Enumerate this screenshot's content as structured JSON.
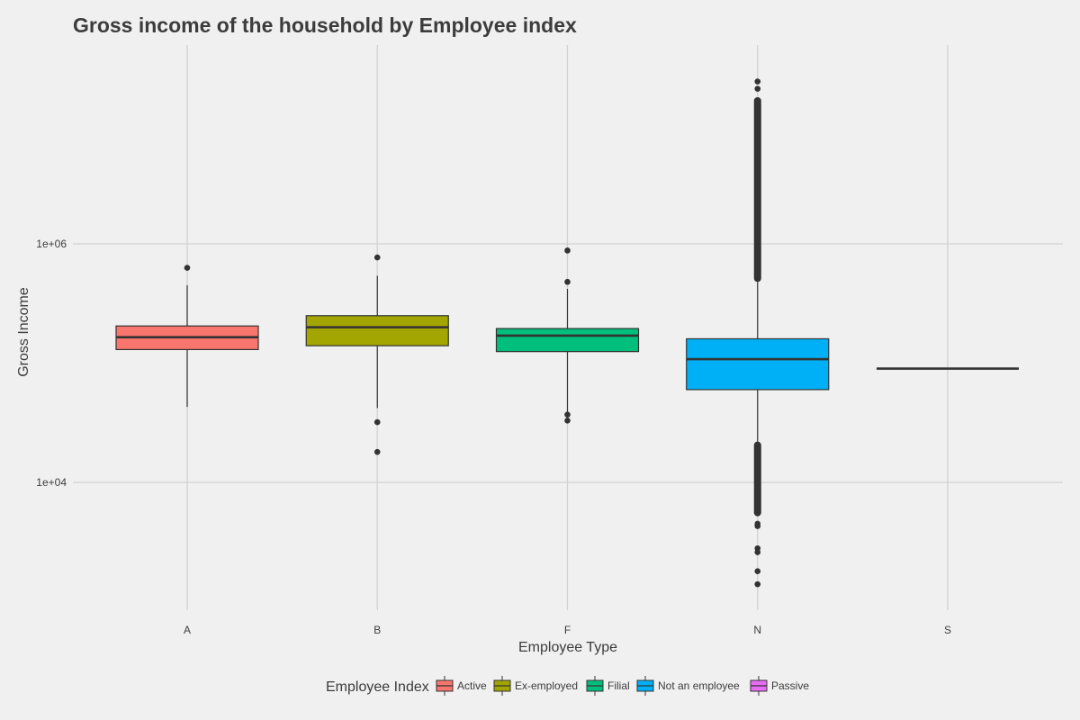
{
  "chart_data": {
    "type": "boxplot",
    "title": "Gross income of the household by Employee index",
    "xlabel": "Employee Type",
    "ylabel": "Gross Income",
    "y_scale": "log10",
    "ylim": [
      1000,
      30000000
    ],
    "y_ticks": [
      {
        "value": 10000,
        "label": "1e+04"
      },
      {
        "value": 1000000,
        "label": "1e+06"
      }
    ],
    "grid": true,
    "categories": [
      "A",
      "B",
      "F",
      "N",
      "S"
    ],
    "legend": {
      "title": "Employee Index",
      "position": "bottom",
      "items": [
        {
          "label": "Active",
          "color": "#f8766d"
        },
        {
          "label": "Ex-employed",
          "color": "#a3a500"
        },
        {
          "label": "Filial",
          "color": "#00bf7d"
        },
        {
          "label": "Not an employee",
          "color": "#00b0f6"
        },
        {
          "label": "Passive",
          "color": "#e76bf3"
        }
      ]
    },
    "boxes": [
      {
        "category": "A",
        "series": "Active",
        "whisker_low": 43000,
        "q1": 130000,
        "median": 165000,
        "q3": 205000,
        "whisker_high": 450000,
        "outliers": [
          630000
        ]
      },
      {
        "category": "B",
        "series": "Ex-employed",
        "whisker_low": 42000,
        "q1": 140000,
        "median": 200000,
        "q3": 250000,
        "whisker_high": 540000,
        "outliers": [
          32000,
          18000,
          770000
        ]
      },
      {
        "category": "F",
        "series": "Filial",
        "whisker_low": 36000,
        "q1": 125000,
        "median": 170000,
        "q3": 195000,
        "whisker_high": 420000,
        "outliers": [
          33000,
          37000,
          480000,
          880000
        ]
      },
      {
        "category": "N",
        "series": "Not an employee",
        "whisker_low": 22000,
        "q1": 60000,
        "median": 108000,
        "q3": 160000,
        "whisker_high": 480000,
        "outlier_ranges": [
          [
            5200,
            22000
          ],
          [
            480000,
            17000000
          ]
        ],
        "outliers": [
          4300,
          4500,
          2800,
          2600,
          1800,
          1400,
          20000000,
          23000000
        ]
      },
      {
        "category": "S",
        "series": "Passive",
        "whisker_low": 90000,
        "q1": 90000,
        "median": 90000,
        "q3": 90000,
        "whisker_high": 90000,
        "outliers": []
      }
    ]
  }
}
